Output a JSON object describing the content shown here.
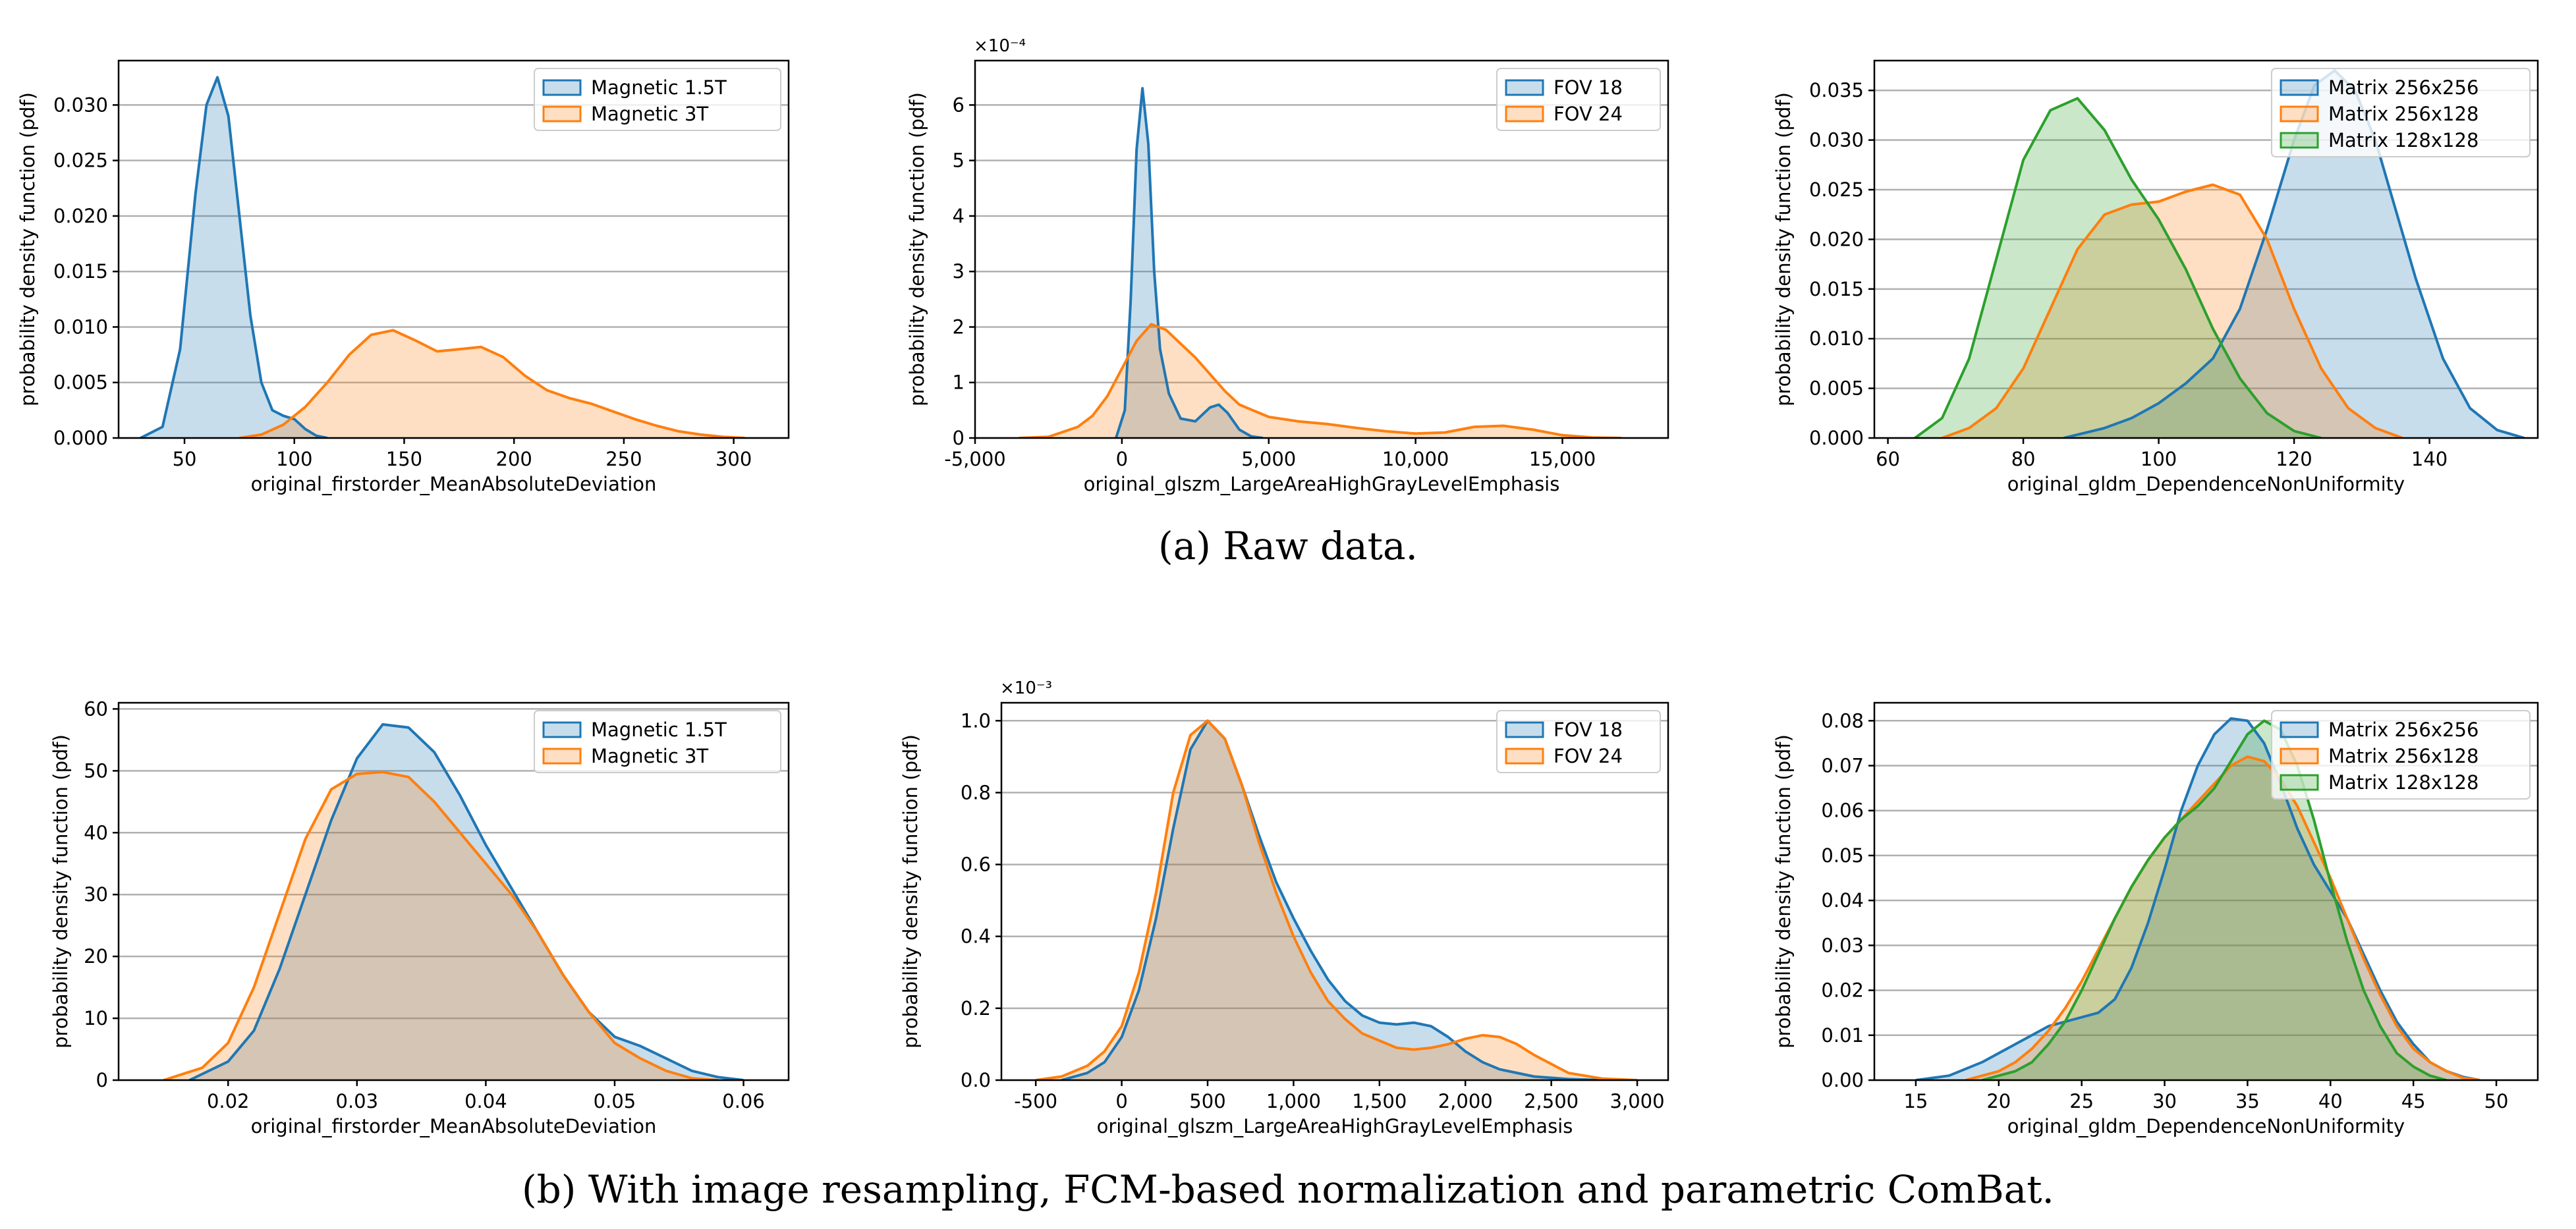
{
  "captions": {
    "a": "(a) Raw data.",
    "b": "(b) With image resampling, FCM-based normalization and parametric ComBat."
  },
  "colors": {
    "blue": "#1f77b4",
    "orange": "#ff7f0e",
    "green": "#2ca02c",
    "grid": "#b0b0b0"
  },
  "chart_data": [
    {
      "id": "a1",
      "type": "area",
      "title": "",
      "xlabel": "original_firstorder_MeanAbsoluteDeviation",
      "ylabel": "probability density function (pdf)",
      "xlim": [
        20,
        325
      ],
      "ylim": [
        0,
        0.034
      ],
      "xticks": [
        50,
        100,
        150,
        200,
        250,
        300
      ],
      "xtick_labels": [
        "50",
        "100",
        "150",
        "200",
        "250",
        "300"
      ],
      "yticks": [
        0,
        0.005,
        0.01,
        0.015,
        0.02,
        0.025,
        0.03
      ],
      "ytick_labels": [
        "0.000",
        "0.005",
        "0.010",
        "0.015",
        "0.020",
        "0.025",
        "0.030"
      ],
      "y_offset_label": "",
      "grid": "horizontal",
      "legend": "top-right",
      "series": [
        {
          "name": "Magnetic 1.5T",
          "color": "#1f77b4",
          "x": [
            30,
            40,
            48,
            55,
            60,
            65,
            70,
            75,
            80,
            85,
            90,
            95,
            100,
            105,
            110,
            115
          ],
          "y": [
            0,
            0.001,
            0.008,
            0.022,
            0.03,
            0.0325,
            0.029,
            0.02,
            0.011,
            0.005,
            0.0025,
            0.002,
            0.0017,
            0.0008,
            0.0002,
            0
          ]
        },
        {
          "name": "Magnetic 3T",
          "color": "#ff7f0e",
          "x": [
            75,
            85,
            95,
            105,
            115,
            125,
            135,
            145,
            155,
            165,
            175,
            185,
            195,
            205,
            215,
            225,
            235,
            245,
            255,
            265,
            275,
            285,
            295,
            305
          ],
          "y": [
            0,
            0.0003,
            0.0012,
            0.0028,
            0.005,
            0.0075,
            0.0093,
            0.0097,
            0.0088,
            0.0078,
            0.008,
            0.0082,
            0.0073,
            0.0056,
            0.0043,
            0.0036,
            0.0031,
            0.0024,
            0.0017,
            0.0011,
            0.0006,
            0.0003,
            0.0001,
            0
          ]
        }
      ]
    },
    {
      "id": "a2",
      "type": "area",
      "title": "",
      "xlabel": "original_glszm_LargeAreaHighGrayLevelEmphasis",
      "ylabel": "probability density function (pdf)",
      "xlim": [
        -5000,
        18600
      ],
      "ylim": [
        0,
        6.8
      ],
      "xticks": [
        -5000,
        0,
        5000,
        10000,
        15000
      ],
      "xtick_labels": [
        "-5,000",
        "0",
        "5,000",
        "10,000",
        "15,000"
      ],
      "yticks": [
        0,
        1,
        2,
        3,
        4,
        5,
        6
      ],
      "ytick_labels": [
        "0",
        "1",
        "2",
        "3",
        "4",
        "5",
        "6"
      ],
      "y_offset_label": "×10⁻⁴",
      "grid": "horizontal",
      "legend": "top-right",
      "series": [
        {
          "name": "FOV 18",
          "color": "#1f77b4",
          "x": [
            -200,
            100,
            300,
            500,
            700,
            900,
            1100,
            1300,
            1600,
            2000,
            2500,
            3000,
            3300,
            3600,
            4000,
            4400,
            4800
          ],
          "y": [
            0,
            0.5,
            2.5,
            5.2,
            6.3,
            5.3,
            3.0,
            1.6,
            0.8,
            0.35,
            0.3,
            0.55,
            0.6,
            0.45,
            0.15,
            0.03,
            0
          ]
        },
        {
          "name": "FOV 24",
          "color": "#ff7f0e",
          "x": [
            -3500,
            -2500,
            -1500,
            -1000,
            -500,
            0,
            500,
            1000,
            1500,
            2000,
            2500,
            3000,
            3500,
            4000,
            5000,
            6000,
            7000,
            8000,
            9000,
            10000,
            11000,
            12000,
            13000,
            14000,
            15000,
            16000,
            17000
          ],
          "y": [
            0,
            0.02,
            0.2,
            0.4,
            0.75,
            1.25,
            1.75,
            2.05,
            1.95,
            1.7,
            1.45,
            1.15,
            0.85,
            0.6,
            0.38,
            0.3,
            0.25,
            0.18,
            0.12,
            0.08,
            0.1,
            0.2,
            0.22,
            0.15,
            0.05,
            0.01,
            0
          ]
        }
      ]
    },
    {
      "id": "a3",
      "type": "area",
      "title": "",
      "xlabel": "original_gldm_DependenceNonUniformity",
      "ylabel": "probability density function (pdf)",
      "xlim": [
        58,
        156
      ],
      "ylim": [
        0,
        0.038
      ],
      "xticks": [
        60,
        80,
        100,
        120,
        140
      ],
      "xtick_labels": [
        "60",
        "80",
        "100",
        "120",
        "140"
      ],
      "yticks": [
        0,
        0.005,
        0.01,
        0.015,
        0.02,
        0.025,
        0.03,
        0.035
      ],
      "ytick_labels": [
        "0.000",
        "0.005",
        "0.010",
        "0.015",
        "0.020",
        "0.025",
        "0.030",
        "0.035"
      ],
      "y_offset_label": "",
      "grid": "horizontal",
      "legend": "top-right",
      "series": [
        {
          "name": "Matrix 256x256",
          "color": "#1f77b4",
          "x": [
            86,
            92,
            96,
            100,
            104,
            108,
            112,
            116,
            120,
            123,
            126,
            129,
            132,
            135,
            138,
            142,
            146,
            150,
            154
          ],
          "y": [
            0,
            0.001,
            0.002,
            0.0035,
            0.0055,
            0.008,
            0.013,
            0.021,
            0.03,
            0.0355,
            0.037,
            0.035,
            0.03,
            0.023,
            0.016,
            0.008,
            0.003,
            0.0008,
            0
          ]
        },
        {
          "name": "Matrix 256x128",
          "color": "#ff7f0e",
          "x": [
            68,
            72,
            76,
            80,
            84,
            88,
            92,
            96,
            100,
            104,
            108,
            112,
            116,
            120,
            124,
            128,
            132,
            136
          ],
          "y": [
            0,
            0.001,
            0.003,
            0.007,
            0.013,
            0.019,
            0.0225,
            0.0235,
            0.0238,
            0.0248,
            0.0255,
            0.0245,
            0.02,
            0.013,
            0.007,
            0.003,
            0.001,
            0
          ]
        },
        {
          "name": "Matrix 128x128",
          "color": "#2ca02c",
          "x": [
            64,
            68,
            72,
            76,
            80,
            84,
            88,
            92,
            96,
            100,
            104,
            108,
            112,
            116,
            120,
            124
          ],
          "y": [
            0,
            0.002,
            0.008,
            0.018,
            0.028,
            0.033,
            0.0342,
            0.031,
            0.026,
            0.022,
            0.017,
            0.011,
            0.006,
            0.0025,
            0.0007,
            0
          ]
        }
      ]
    },
    {
      "id": "b1",
      "type": "area",
      "title": "",
      "xlabel": "original_firstorder_MeanAbsoluteDeviation",
      "ylabel": "probability density function (pdf)",
      "xlim": [
        0.0115,
        0.0635
      ],
      "ylim": [
        0,
        61
      ],
      "xticks": [
        0.02,
        0.03,
        0.04,
        0.05,
        0.06
      ],
      "xtick_labels": [
        "0.02",
        "0.03",
        "0.04",
        "0.05",
        "0.06"
      ],
      "yticks": [
        0,
        10,
        20,
        30,
        40,
        50,
        60
      ],
      "ytick_labels": [
        "0",
        "10",
        "20",
        "30",
        "40",
        "50",
        "60"
      ],
      "y_offset_label": "",
      "grid": "horizontal",
      "legend": "top-right",
      "series": [
        {
          "name": "Magnetic 1.5T",
          "color": "#1f77b4",
          "x": [
            0.017,
            0.02,
            0.022,
            0.024,
            0.026,
            0.028,
            0.03,
            0.032,
            0.034,
            0.036,
            0.038,
            0.04,
            0.042,
            0.044,
            0.046,
            0.048,
            0.05,
            0.052,
            0.054,
            0.056,
            0.058,
            0.06
          ],
          "y": [
            0,
            3,
            8,
            18,
            30,
            42,
            52,
            57.5,
            57,
            53,
            46,
            38,
            31,
            24,
            17,
            11,
            7,
            5.5,
            3.5,
            1.5,
            0.5,
            0
          ]
        },
        {
          "name": "Magnetic 3T",
          "color": "#ff7f0e",
          "x": [
            0.015,
            0.018,
            0.02,
            0.022,
            0.024,
            0.026,
            0.028,
            0.03,
            0.032,
            0.034,
            0.036,
            0.038,
            0.04,
            0.042,
            0.044,
            0.046,
            0.048,
            0.05,
            0.052,
            0.054,
            0.056,
            0.058
          ],
          "y": [
            0,
            2,
            6,
            15,
            27,
            39,
            47,
            49.5,
            49.8,
            49,
            45,
            40,
            35,
            30,
            24,
            17,
            11,
            6,
            3.5,
            1.5,
            0.3,
            0
          ]
        }
      ]
    },
    {
      "id": "b2",
      "type": "area",
      "title": "",
      "xlabel": "original_glszm_LargeAreaHighGrayLevelEmphasis",
      "ylabel": "probability density function (pdf)",
      "xlim": [
        -700,
        3180
      ],
      "ylim": [
        0,
        1.05
      ],
      "xticks": [
        -500,
        0,
        500,
        1000,
        1500,
        2000,
        2500,
        3000
      ],
      "xtick_labels": [
        "-500",
        "0",
        "500",
        "1,000",
        "1,500",
        "2,000",
        "2,500",
        "3,000"
      ],
      "yticks": [
        0,
        0.2,
        0.4,
        0.6,
        0.8,
        1.0
      ],
      "ytick_labels": [
        "0.0",
        "0.2",
        "0.4",
        "0.6",
        "0.8",
        "1.0"
      ],
      "y_offset_label": "×10⁻³",
      "grid": "horizontal",
      "legend": "top-right",
      "series": [
        {
          "name": "FOV 18",
          "color": "#1f77b4",
          "x": [
            -350,
            -200,
            -100,
            0,
            100,
            200,
            300,
            400,
            500,
            600,
            700,
            800,
            900,
            1000,
            1100,
            1200,
            1300,
            1400,
            1500,
            1600,
            1700,
            1800,
            1900,
            2000,
            2100,
            2200,
            2400,
            2600,
            2800
          ],
          "y": [
            0,
            0.02,
            0.05,
            0.12,
            0.25,
            0.45,
            0.7,
            0.92,
            1.0,
            0.95,
            0.82,
            0.68,
            0.55,
            0.45,
            0.36,
            0.28,
            0.22,
            0.18,
            0.16,
            0.155,
            0.16,
            0.15,
            0.12,
            0.08,
            0.05,
            0.03,
            0.01,
            0.003,
            0
          ]
        },
        {
          "name": "FOV 24",
          "color": "#ff7f0e",
          "x": [
            -500,
            -350,
            -200,
            -100,
            0,
            100,
            200,
            300,
            400,
            500,
            600,
            700,
            800,
            900,
            1000,
            1100,
            1200,
            1300,
            1400,
            1500,
            1600,
            1700,
            1800,
            1900,
            2000,
            2100,
            2200,
            2300,
            2400,
            2600,
            2800,
            3000
          ],
          "y": [
            0,
            0.01,
            0.04,
            0.08,
            0.15,
            0.3,
            0.52,
            0.8,
            0.96,
            1.0,
            0.95,
            0.82,
            0.66,
            0.52,
            0.4,
            0.3,
            0.22,
            0.17,
            0.13,
            0.11,
            0.09,
            0.085,
            0.09,
            0.1,
            0.115,
            0.125,
            0.12,
            0.1,
            0.07,
            0.02,
            0.004,
            0
          ]
        }
      ]
    },
    {
      "id": "b3",
      "type": "area",
      "title": "",
      "xlabel": "original_gldm_DependenceNonUniformity",
      "ylabel": "probability density function (pdf)",
      "xlim": [
        12.5,
        52.5
      ],
      "ylim": [
        0,
        0.084
      ],
      "xticks": [
        15,
        20,
        25,
        30,
        35,
        40,
        45,
        50
      ],
      "xtick_labels": [
        "15",
        "20",
        "25",
        "30",
        "35",
        "40",
        "45",
        "50"
      ],
      "yticks": [
        0,
        0.01,
        0.02,
        0.03,
        0.04,
        0.05,
        0.06,
        0.07,
        0.08
      ],
      "ytick_labels": [
        "0.00",
        "0.01",
        "0.02",
        "0.03",
        "0.04",
        "0.05",
        "0.06",
        "0.07",
        "0.08"
      ],
      "y_offset_label": "",
      "grid": "horizontal",
      "legend": "top-right",
      "series": [
        {
          "name": "Matrix 256x256",
          "color": "#1f77b4",
          "x": [
            15,
            17,
            19,
            21,
            23,
            25,
            26,
            27,
            28,
            29,
            30,
            31,
            32,
            33,
            34,
            35,
            36,
            37,
            38,
            39,
            40,
            41,
            42,
            43,
            44,
            45,
            46,
            47,
            48,
            49
          ],
          "y": [
            0,
            0.001,
            0.004,
            0.008,
            0.012,
            0.014,
            0.015,
            0.018,
            0.025,
            0.035,
            0.047,
            0.06,
            0.07,
            0.077,
            0.0805,
            0.08,
            0.075,
            0.066,
            0.056,
            0.048,
            0.042,
            0.036,
            0.028,
            0.02,
            0.013,
            0.008,
            0.004,
            0.002,
            0.0007,
            0
          ]
        },
        {
          "name": "Matrix 256x128",
          "color": "#ff7f0e",
          "x": [
            18,
            20,
            21,
            22,
            23,
            24,
            25,
            26,
            27,
            28,
            29,
            30,
            31,
            32,
            33,
            34,
            35,
            36,
            37,
            38,
            39,
            40,
            41,
            42,
            43,
            44,
            45,
            46,
            47,
            48,
            49
          ],
          "y": [
            0,
            0.002,
            0.004,
            0.007,
            0.011,
            0.016,
            0.022,
            0.029,
            0.036,
            0.043,
            0.049,
            0.054,
            0.058,
            0.062,
            0.066,
            0.07,
            0.072,
            0.071,
            0.067,
            0.061,
            0.053,
            0.045,
            0.036,
            0.027,
            0.019,
            0.012,
            0.007,
            0.004,
            0.002,
            0.0005,
            0
          ]
        },
        {
          "name": "Matrix 128x128",
          "color": "#2ca02c",
          "x": [
            19,
            21,
            22,
            23,
            24,
            25,
            26,
            27,
            28,
            29,
            30,
            31,
            32,
            33,
            34,
            35,
            36,
            37,
            38,
            39,
            40,
            41,
            42,
            43,
            44,
            45,
            46,
            47
          ],
          "y": [
            0,
            0.002,
            0.004,
            0.008,
            0.013,
            0.02,
            0.028,
            0.036,
            0.043,
            0.049,
            0.054,
            0.058,
            0.061,
            0.065,
            0.071,
            0.077,
            0.08,
            0.078,
            0.07,
            0.058,
            0.044,
            0.031,
            0.02,
            0.012,
            0.006,
            0.003,
            0.001,
            0
          ]
        }
      ]
    }
  ]
}
